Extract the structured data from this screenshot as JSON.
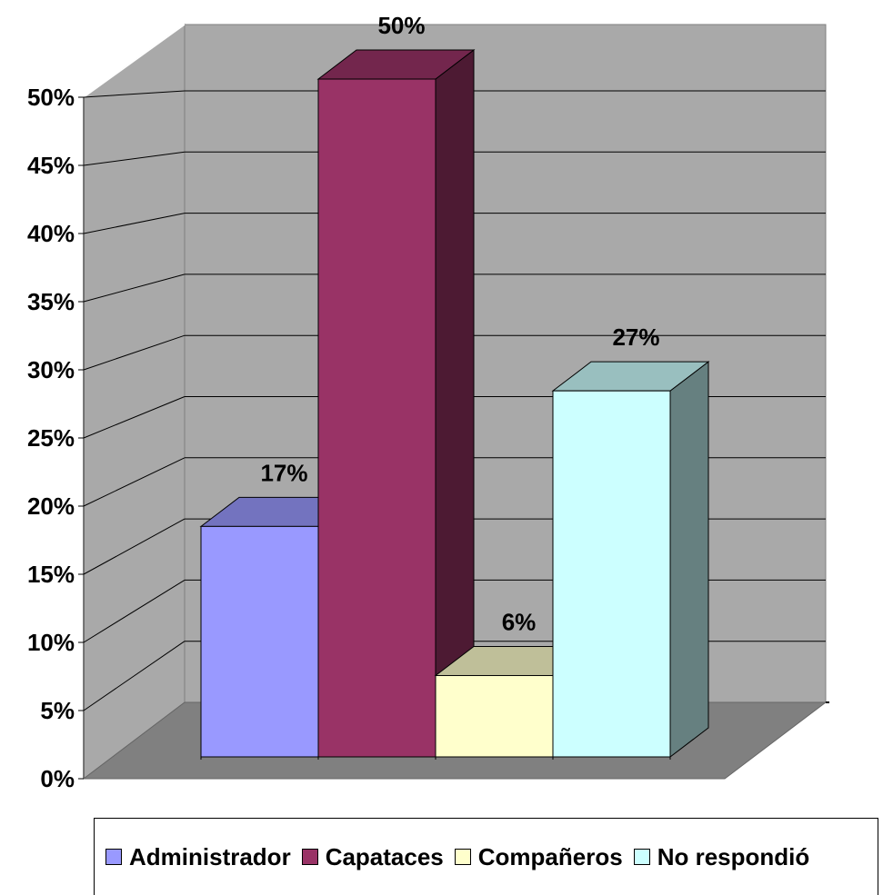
{
  "chart_data": {
    "type": "bar",
    "three_d": true,
    "categories": [
      "Administrador",
      "Capataces",
      "Compañeros",
      "No respondió"
    ],
    "values": [
      17,
      50,
      6,
      27
    ],
    "value_labels": [
      "17%",
      "50%",
      "6%",
      "27%"
    ],
    "colors": [
      "#9999ff",
      "#993366",
      "#ffffcc",
      "#ccffff"
    ],
    "y_ticks": [
      "0%",
      "5%",
      "10%",
      "15%",
      "20%",
      "25%",
      "30%",
      "35%",
      "40%",
      "45%",
      "50%"
    ],
    "ylim": [
      0,
      50
    ],
    "grid": true,
    "legend": {
      "position": "bottom",
      "entries": [
        "Administrador",
        "Capataces",
        "Compañeros",
        "No respondió"
      ]
    }
  }
}
